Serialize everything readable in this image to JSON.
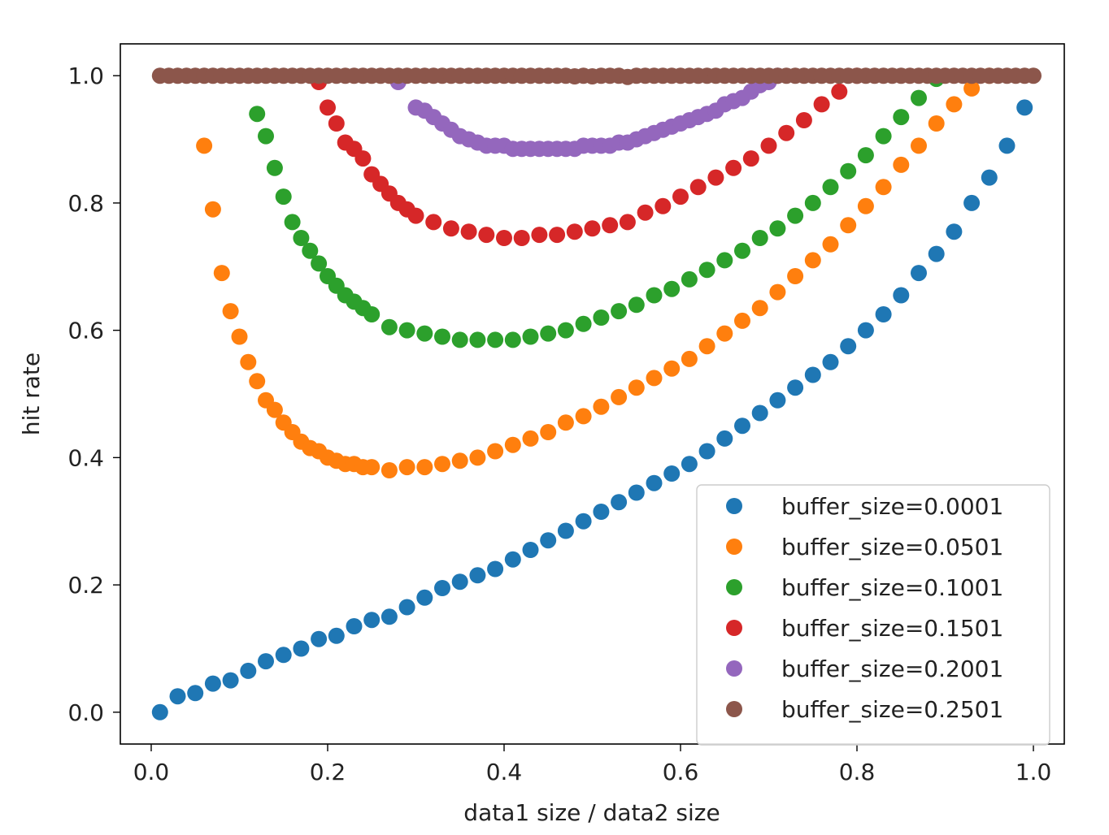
{
  "chart_data": {
    "type": "scatter",
    "title": "",
    "xlabel": "data1 size / data2 size",
    "ylabel": "hit rate",
    "xlim": [
      -0.035,
      1.035
    ],
    "ylim": [
      -0.05,
      1.05
    ],
    "xticks": [
      0.0,
      0.2,
      0.4,
      0.6,
      0.8,
      1.0
    ],
    "xtick_labels": [
      "0.0",
      "0.2",
      "0.4",
      "0.6",
      "0.8",
      "1.0"
    ],
    "yticks": [
      0.0,
      0.2,
      0.4,
      0.6,
      0.8,
      1.0
    ],
    "ytick_labels": [
      "0.0",
      "0.2",
      "0.4",
      "0.6",
      "0.8",
      "1.0"
    ],
    "grid": false,
    "legend_position": "lower-right",
    "series": [
      {
        "name": "buffer_size=0.0001",
        "color": "#1f77b4",
        "x": [
          0.01,
          0.03,
          0.05,
          0.07,
          0.09,
          0.11,
          0.13,
          0.15,
          0.17,
          0.19,
          0.21,
          0.23,
          0.25,
          0.27,
          0.29,
          0.31,
          0.33,
          0.35,
          0.37,
          0.39,
          0.41,
          0.43,
          0.45,
          0.47,
          0.49,
          0.51,
          0.53,
          0.55,
          0.57,
          0.59,
          0.61,
          0.63,
          0.65,
          0.67,
          0.69,
          0.71,
          0.73,
          0.75,
          0.77,
          0.79,
          0.81,
          0.83,
          0.85,
          0.87,
          0.89,
          0.91,
          0.93,
          0.95,
          0.97,
          0.99
        ],
        "y": [
          0.0,
          0.025,
          0.03,
          0.045,
          0.05,
          0.065,
          0.08,
          0.09,
          0.1,
          0.115,
          0.12,
          0.135,
          0.145,
          0.15,
          0.165,
          0.18,
          0.195,
          0.205,
          0.215,
          0.225,
          0.24,
          0.255,
          0.27,
          0.285,
          0.3,
          0.315,
          0.33,
          0.345,
          0.36,
          0.375,
          0.39,
          0.41,
          0.43,
          0.45,
          0.47,
          0.49,
          0.51,
          0.53,
          0.55,
          0.575,
          0.6,
          0.625,
          0.655,
          0.69,
          0.72,
          0.755,
          0.8,
          0.84,
          0.89,
          0.95
        ]
      },
      {
        "name": "buffer_size=0.0501",
        "color": "#ff7f0e",
        "x": [
          0.06,
          0.07,
          0.08,
          0.09,
          0.1,
          0.11,
          0.12,
          0.13,
          0.14,
          0.15,
          0.16,
          0.17,
          0.18,
          0.19,
          0.2,
          0.21,
          0.22,
          0.23,
          0.24,
          0.25,
          0.27,
          0.29,
          0.31,
          0.33,
          0.35,
          0.37,
          0.39,
          0.41,
          0.43,
          0.45,
          0.47,
          0.49,
          0.51,
          0.53,
          0.55,
          0.57,
          0.59,
          0.61,
          0.63,
          0.65,
          0.67,
          0.69,
          0.71,
          0.73,
          0.75,
          0.77,
          0.79,
          0.81,
          0.83,
          0.85,
          0.87,
          0.89,
          0.91,
          0.93,
          0.95
        ],
        "y": [
          0.89,
          0.79,
          0.69,
          0.63,
          0.59,
          0.55,
          0.52,
          0.49,
          0.475,
          0.455,
          0.44,
          0.425,
          0.415,
          0.41,
          0.4,
          0.395,
          0.39,
          0.39,
          0.385,
          0.385,
          0.38,
          0.385,
          0.385,
          0.39,
          0.395,
          0.4,
          0.41,
          0.42,
          0.43,
          0.44,
          0.455,
          0.465,
          0.48,
          0.495,
          0.51,
          0.525,
          0.54,
          0.555,
          0.575,
          0.595,
          0.615,
          0.635,
          0.66,
          0.685,
          0.71,
          0.735,
          0.765,
          0.795,
          0.825,
          0.86,
          0.89,
          0.925,
          0.955,
          0.98,
          1.0
        ]
      },
      {
        "name": "buffer_size=0.1001",
        "color": "#2ca02c",
        "x": [
          0.12,
          0.13,
          0.14,
          0.15,
          0.16,
          0.17,
          0.18,
          0.19,
          0.2,
          0.21,
          0.22,
          0.23,
          0.24,
          0.25,
          0.27,
          0.29,
          0.31,
          0.33,
          0.35,
          0.37,
          0.39,
          0.41,
          0.43,
          0.45,
          0.47,
          0.49,
          0.51,
          0.53,
          0.55,
          0.57,
          0.59,
          0.61,
          0.63,
          0.65,
          0.67,
          0.69,
          0.71,
          0.73,
          0.75,
          0.77,
          0.79,
          0.81,
          0.83,
          0.85,
          0.87,
          0.89
        ],
        "y": [
          0.94,
          0.905,
          0.855,
          0.81,
          0.77,
          0.745,
          0.725,
          0.705,
          0.685,
          0.67,
          0.655,
          0.645,
          0.635,
          0.625,
          0.605,
          0.6,
          0.595,
          0.59,
          0.585,
          0.585,
          0.585,
          0.585,
          0.59,
          0.595,
          0.6,
          0.61,
          0.62,
          0.63,
          0.64,
          0.655,
          0.665,
          0.68,
          0.695,
          0.71,
          0.725,
          0.745,
          0.76,
          0.78,
          0.8,
          0.825,
          0.85,
          0.875,
          0.905,
          0.935,
          0.965,
          0.995
        ]
      },
      {
        "name": "buffer_size=0.1501",
        "color": "#d62728",
        "x": [
          0.19,
          0.2,
          0.21,
          0.22,
          0.23,
          0.24,
          0.25,
          0.26,
          0.27,
          0.28,
          0.29,
          0.3,
          0.32,
          0.34,
          0.36,
          0.38,
          0.4,
          0.42,
          0.44,
          0.46,
          0.48,
          0.5,
          0.52,
          0.54,
          0.56,
          0.58,
          0.6,
          0.62,
          0.64,
          0.66,
          0.68,
          0.7,
          0.72,
          0.74,
          0.76,
          0.78,
          0.8
        ],
        "y": [
          0.99,
          0.95,
          0.925,
          0.895,
          0.885,
          0.87,
          0.845,
          0.83,
          0.815,
          0.8,
          0.79,
          0.78,
          0.77,
          0.76,
          0.755,
          0.75,
          0.745,
          0.745,
          0.75,
          0.75,
          0.755,
          0.76,
          0.765,
          0.77,
          0.785,
          0.795,
          0.81,
          0.825,
          0.84,
          0.855,
          0.87,
          0.89,
          0.91,
          0.93,
          0.955,
          0.975,
          1.0
        ]
      },
      {
        "name": "buffer_size=0.2001",
        "color": "#9467bd",
        "x": [
          0.28,
          0.3,
          0.31,
          0.32,
          0.33,
          0.34,
          0.35,
          0.36,
          0.37,
          0.38,
          0.39,
          0.4,
          0.41,
          0.42,
          0.43,
          0.44,
          0.45,
          0.46,
          0.47,
          0.48,
          0.49,
          0.5,
          0.51,
          0.52,
          0.53,
          0.54,
          0.55,
          0.56,
          0.57,
          0.58,
          0.59,
          0.6,
          0.61,
          0.62,
          0.63,
          0.64,
          0.65,
          0.66,
          0.67,
          0.68,
          0.69,
          0.7,
          0.71
        ],
        "y": [
          0.99,
          0.95,
          0.945,
          0.935,
          0.925,
          0.915,
          0.905,
          0.9,
          0.895,
          0.89,
          0.89,
          0.89,
          0.885,
          0.885,
          0.885,
          0.885,
          0.885,
          0.885,
          0.885,
          0.885,
          0.89,
          0.89,
          0.89,
          0.89,
          0.895,
          0.895,
          0.9,
          0.905,
          0.91,
          0.915,
          0.92,
          0.925,
          0.93,
          0.935,
          0.94,
          0.945,
          0.955,
          0.96,
          0.965,
          0.975,
          0.985,
          0.99,
          1.0
        ]
      },
      {
        "name": "buffer_size=0.2501",
        "color": "#8c564b",
        "x": [
          0.01,
          0.02,
          0.03,
          0.04,
          0.05,
          0.06,
          0.07,
          0.08,
          0.09,
          0.1,
          0.11,
          0.12,
          0.13,
          0.14,
          0.15,
          0.16,
          0.17,
          0.18,
          0.19,
          0.2,
          0.21,
          0.22,
          0.23,
          0.24,
          0.25,
          0.26,
          0.27,
          0.28,
          0.29,
          0.3,
          0.31,
          0.32,
          0.33,
          0.34,
          0.35,
          0.36,
          0.37,
          0.38,
          0.39,
          0.4,
          0.41,
          0.42,
          0.43,
          0.44,
          0.45,
          0.46,
          0.47,
          0.48,
          0.49,
          0.5,
          0.51,
          0.52,
          0.53,
          0.54,
          0.55,
          0.56,
          0.57,
          0.58,
          0.59,
          0.6,
          0.61,
          0.62,
          0.63,
          0.64,
          0.65,
          0.66,
          0.67,
          0.68,
          0.69,
          0.7,
          0.71,
          0.72,
          0.73,
          0.74,
          0.75,
          0.76,
          0.77,
          0.78,
          0.79,
          0.8,
          0.81,
          0.82,
          0.83,
          0.84,
          0.85,
          0.86,
          0.87,
          0.88,
          0.89,
          0.9,
          0.91,
          0.92,
          0.93,
          0.94,
          0.95,
          0.96,
          0.97,
          0.98,
          0.99,
          1.0
        ],
        "y": [
          1.0,
          1.0,
          1.0,
          1.0,
          1.0,
          1.0,
          1.0,
          1.0,
          1.0,
          1.0,
          1.0,
          1.0,
          1.0,
          1.0,
          1.0,
          1.0,
          1.0,
          1.0,
          1.0,
          1.0,
          1.0,
          1.0,
          1.0,
          1.0,
          1.0,
          1.0,
          1.0,
          1.0,
          1.0,
          1.0,
          1.0,
          1.0,
          1.0,
          1.0,
          1.0,
          1.0,
          1.0,
          1.0,
          1.0,
          1.0,
          1.0,
          1.0,
          1.0,
          1.0,
          1.0,
          1.0,
          1.0,
          0.999,
          1.0,
          0.999,
          1.0,
          1.0,
          1.0,
          0.998,
          1.0,
          1.0,
          1.0,
          1.0,
          1.0,
          1.0,
          1.0,
          1.0,
          1.0,
          1.0,
          1.0,
          1.0,
          1.0,
          1.0,
          1.0,
          1.0,
          1.0,
          1.0,
          1.0,
          1.0,
          1.0,
          1.0,
          1.0,
          1.0,
          1.0,
          1.0,
          1.0,
          1.0,
          1.0,
          1.0,
          1.0,
          1.0,
          1.0,
          1.0,
          1.0,
          1.0,
          1.0,
          1.0,
          1.0,
          1.0,
          1.0,
          1.0,
          1.0,
          1.0,
          1.0,
          1.0
        ]
      }
    ]
  }
}
